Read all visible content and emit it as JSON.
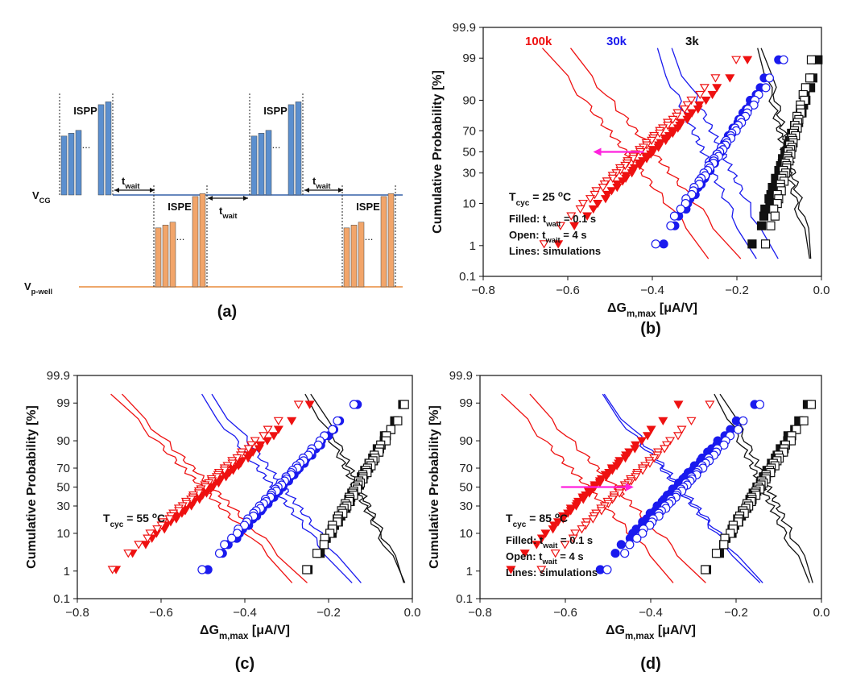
{
  "colors": {
    "red": "#ee1111",
    "blue": "#1a1aee",
    "black": "#111111",
    "magenta": "#ff22dd",
    "ispp": "#5b8fcf",
    "ispe": "#f2a56a",
    "vcg_line": "#3560a8",
    "vpwell_line": "#e88a3a"
  },
  "panel_a": {
    "label": "(a)",
    "ispp_label": "ISPP",
    "ispe_label": "ISPE",
    "twait": {
      "main": "t",
      "sub": "wait"
    },
    "vcg": {
      "main": "V",
      "sub": "CG"
    },
    "vpwell": {
      "main": "V",
      "sub": "p-well"
    },
    "ellipsis": "...",
    "pulse_heights_rel": [
      0.62,
      0.65,
      0.68,
      0.95,
      0.98
    ]
  },
  "legend_labels": {
    "k100": "100k",
    "k30": "30k",
    "k3": "3k"
  },
  "annotations": {
    "filled": "Filled: t",
    "filled_sub": "wait",
    "filled_val": " = 0.1 s",
    "open": "Open: t",
    "open_sub": "wait",
    "open_val": " = 4 s",
    "lines": "Lines: simulations",
    "tcyc_prefix": "T",
    "tcyc_sub": "cyc",
    "deg": "o",
    "C": "C"
  },
  "chart_data": [
    {
      "panel": "(b)",
      "type": "scatter",
      "tcyc": "25",
      "show_legend_labels": true,
      "show_notes": true,
      "arrow": {
        "from": -0.42,
        "to": -0.54,
        "prob": 50
      },
      "xlabel": "ΔG",
      "xlabel_sub": "m,max",
      "xlabel_unit": " [μA/V]",
      "ylabel": "Cumulative Probability [%]",
      "xlim": [
        -0.8,
        0.0
      ],
      "xticks": [
        "-0.8",
        "-0.6",
        "-0.4",
        "-0.2",
        "0.0"
      ],
      "ylim_prob": [
        0.1,
        99.9
      ],
      "yticks": [
        "0.1",
        "1",
        "10",
        "30",
        "50",
        "70",
        "90",
        "99",
        "99.9"
      ],
      "series": [
        {
          "name": "100k filled",
          "color": "red",
          "marker": "tri-down-filled",
          "x_range": [
            -0.625,
            -0.175
          ]
        },
        {
          "name": "100k open",
          "color": "red",
          "marker": "tri-down-open",
          "x_range": [
            -0.66,
            -0.205
          ]
        },
        {
          "name": "30k filled",
          "color": "blue",
          "marker": "circle-filled",
          "x_range": [
            -0.375,
            -0.105
          ]
        },
        {
          "name": "30k open",
          "color": "blue",
          "marker": "circle-open",
          "x_range": [
            -0.39,
            -0.09
          ]
        },
        {
          "name": "3k filled",
          "color": "black",
          "marker": "square-filled",
          "x_range": [
            -0.16,
            -0.005
          ]
        },
        {
          "name": "3k open",
          "color": "black",
          "marker": "square-open",
          "x_range": [
            -0.13,
            -0.02
          ]
        }
      ],
      "lines": [
        {
          "color": "red",
          "x_range": [
            -0.66,
            -0.26
          ]
        },
        {
          "color": "red",
          "x_range": [
            -0.6,
            -0.19
          ]
        },
        {
          "color": "blue",
          "x_range": [
            -0.395,
            -0.16
          ]
        },
        {
          "color": "blue",
          "x_range": [
            -0.355,
            -0.11
          ]
        },
        {
          "color": "black",
          "x_range": [
            -0.145,
            -0.03
          ]
        },
        {
          "color": "black",
          "x_range": [
            -0.135,
            -0.02
          ]
        }
      ]
    },
    {
      "panel": "(c)",
      "type": "scatter",
      "tcyc": "55",
      "show_legend_labels": false,
      "show_notes": false,
      "xlabel": "ΔG",
      "xlabel_sub": "m,max",
      "xlabel_unit": " [μA/V]",
      "ylabel": "Cumulative Probability [%]",
      "xlim": [
        -0.8,
        0.0
      ],
      "xticks": [
        "-0.8",
        "-0.6",
        "-0.4",
        "-0.2",
        "0.0"
      ],
      "ylim_prob": [
        0.1,
        99.9
      ],
      "yticks": [
        "0.1",
        "1",
        "10",
        "30",
        "50",
        "70",
        "90",
        "99",
        "99.9"
      ],
      "series": [
        {
          "name": "100k filled",
          "color": "red",
          "marker": "tri-down-filled",
          "x_range": [
            -0.71,
            -0.245
          ]
        },
        {
          "name": "100k open",
          "color": "red",
          "marker": "tri-down-open",
          "x_range": [
            -0.72,
            -0.275
          ]
        },
        {
          "name": "30k filled",
          "color": "blue",
          "marker": "circle-filled",
          "x_range": [
            -0.49,
            -0.135
          ]
        },
        {
          "name": "30k open",
          "color": "blue",
          "marker": "circle-open",
          "x_range": [
            -0.5,
            -0.14
          ]
        },
        {
          "name": "3k filled",
          "color": "black",
          "marker": "square-filled",
          "x_range": [
            -0.245,
            -0.02
          ]
        },
        {
          "name": "3k open",
          "color": "black",
          "marker": "square-open",
          "x_range": [
            -0.25,
            -0.015
          ]
        }
      ],
      "lines": [
        {
          "color": "red",
          "x_range": [
            -0.72,
            -0.28
          ]
        },
        {
          "color": "red",
          "x_range": [
            -0.7,
            -0.25
          ]
        },
        {
          "color": "blue",
          "x_range": [
            -0.51,
            -0.15
          ]
        },
        {
          "color": "blue",
          "x_range": [
            -0.48,
            -0.13
          ]
        },
        {
          "color": "black",
          "x_range": [
            -0.25,
            -0.02
          ]
        },
        {
          "color": "black",
          "x_range": [
            -0.235,
            -0.015
          ]
        }
      ]
    },
    {
      "panel": "(d)",
      "type": "scatter",
      "tcyc": "85",
      "show_legend_labels": false,
      "show_notes": true,
      "arrow": {
        "from": -0.61,
        "to": -0.44,
        "prob": 50
      },
      "xlabel": "ΔG",
      "xlabel_sub": "m,max",
      "xlabel_unit": " [μA/V]",
      "ylabel": "Cumulative Probability [%]",
      "xlim": [
        -0.8,
        0.0
      ],
      "xticks": [
        "-0.8",
        "-0.6",
        "-0.4",
        "-0.2",
        "0.0"
      ],
      "ylim_prob": [
        0.1,
        99.9
      ],
      "yticks": [
        "0.1",
        "1",
        "10",
        "30",
        "50",
        "70",
        "90",
        "99",
        "99.9"
      ],
      "series": [
        {
          "name": "100k filled",
          "color": "red",
          "marker": "tri-down-filled",
          "x_range": [
            -0.73,
            -0.335
          ]
        },
        {
          "name": "100k open",
          "color": "red",
          "marker": "tri-down-open",
          "x_range": [
            -0.66,
            -0.265
          ]
        },
        {
          "name": "30k filled",
          "color": "blue",
          "marker": "circle-filled",
          "x_range": [
            -0.52,
            -0.16
          ]
        },
        {
          "name": "30k open",
          "color": "blue",
          "marker": "circle-open",
          "x_range": [
            -0.5,
            -0.145
          ]
        },
        {
          "name": "3k filled",
          "color": "black",
          "marker": "square-filled",
          "x_range": [
            -0.265,
            -0.03
          ]
        },
        {
          "name": "3k open",
          "color": "black",
          "marker": "square-open",
          "x_range": [
            -0.27,
            -0.02
          ]
        }
      ],
      "lines": [
        {
          "color": "red",
          "x_range": [
            -0.75,
            -0.34
          ]
        },
        {
          "color": "red",
          "x_range": [
            -0.69,
            -0.27
          ]
        },
        {
          "color": "blue",
          "x_range": [
            -0.52,
            -0.15
          ]
        },
        {
          "color": "blue",
          "x_range": [
            -0.51,
            -0.145
          ]
        },
        {
          "color": "black",
          "x_range": [
            -0.245,
            -0.03
          ]
        },
        {
          "color": "black",
          "x_range": [
            -0.23,
            -0.015
          ]
        }
      ]
    }
  ]
}
